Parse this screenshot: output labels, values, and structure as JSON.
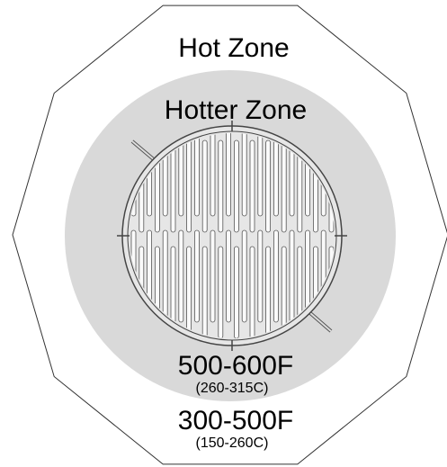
{
  "zones": {
    "outer": {
      "label": "Hot Zone",
      "temp_f": "300-500F",
      "temp_c": "(150-260C)"
    },
    "inner": {
      "label": "Hotter Zone",
      "temp_f": "500-600F",
      "temp_c": "(260-315C)"
    }
  }
}
